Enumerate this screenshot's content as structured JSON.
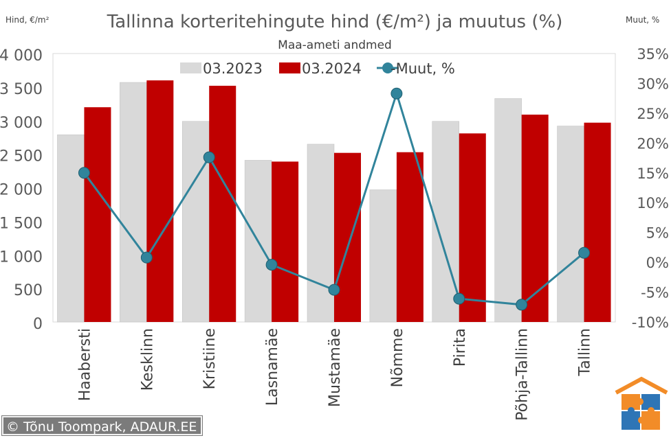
{
  "chart_data": {
    "type": "bar",
    "title": "Tallinna korteritehingute hind (€/m²) ja muutus (%)",
    "subtitle": "Maa-ameti andmed",
    "ylabel": "Hind, €/m²",
    "y2label": "Muut, %",
    "categories": [
      "Haabersti",
      "Kesklinn",
      "Kristiine",
      "Lasnamäe",
      "Mustamäe",
      "Nõmme",
      "Pirita",
      "Põhja-Tallinn",
      "Tallinn"
    ],
    "series": [
      {
        "name": "03.2023",
        "type": "bar",
        "axis": "left",
        "color": "#d9d9d9",
        "values": [
          2790,
          3570,
          2990,
          2410,
          2650,
          1970,
          2990,
          3330,
          2920
        ]
      },
      {
        "name": "03.2024",
        "type": "bar",
        "axis": "left",
        "color": "#c00000",
        "values": [
          3200,
          3600,
          3520,
          2390,
          2520,
          2530,
          2810,
          3090,
          2970
        ]
      },
      {
        "name": "Muut, %",
        "type": "line",
        "axis": "right",
        "color": "#31849b",
        "values": [
          15.0,
          0.8,
          17.6,
          -0.4,
          -4.6,
          28.3,
          -6.1,
          -7.1,
          1.6
        ]
      }
    ],
    "ylim": [
      0,
      4000
    ],
    "yticks": [
      0,
      500,
      1000,
      1500,
      2000,
      2500,
      3000,
      3500,
      4000
    ],
    "ytick_labels": [
      "0",
      "500",
      "1 000",
      "1 500",
      "2 000",
      "2 500",
      "3 000",
      "3 500",
      "4 000"
    ],
    "y2lim": [
      -10,
      35
    ],
    "y2ticks": [
      -10,
      -5,
      0,
      5,
      10,
      15,
      20,
      25,
      30,
      35
    ],
    "y2tick_labels": [
      "-10%",
      "-5%",
      "0%",
      "5%",
      "10%",
      "15%",
      "20%",
      "25%",
      "30%",
      "35%"
    ],
    "legend_position": "top",
    "grid": false
  },
  "credit": "© Tõnu Toompark, ADAUR.EE"
}
